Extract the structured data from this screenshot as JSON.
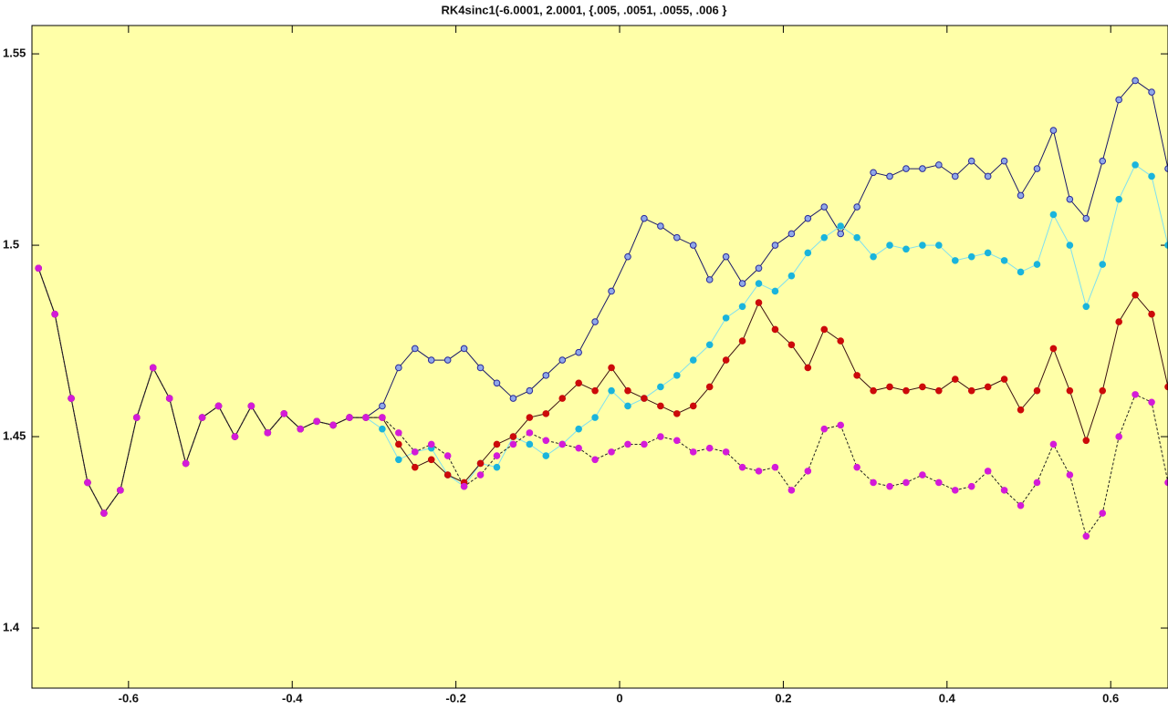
{
  "chart_data": {
    "type": "line",
    "title": "RK4sinc1(-6.0001, 2.0001, {.005, .0051, .0055, .006 }",
    "background": "#ffffa8",
    "x": [
      -0.71,
      -0.69,
      -0.67,
      -0.65,
      -0.63,
      -0.61,
      -0.59,
      -0.57,
      -0.55,
      -0.53,
      -0.51,
      -0.49,
      -0.47,
      -0.45,
      -0.43,
      -0.41,
      -0.39,
      -0.37,
      -0.35,
      -0.33,
      -0.31,
      -0.29,
      -0.27,
      -0.25,
      -0.23,
      -0.21,
      -0.19,
      -0.17,
      -0.15,
      -0.13,
      -0.11,
      -0.09,
      -0.07,
      -0.05,
      -0.03,
      -0.01,
      0.01,
      0.03,
      0.05,
      0.07,
      0.09,
      0.11,
      0.13,
      0.15,
      0.17,
      0.19,
      0.21,
      0.23,
      0.25,
      0.27,
      0.29,
      0.31,
      0.33,
      0.35,
      0.37,
      0.39,
      0.41,
      0.43,
      0.45,
      0.47,
      0.49,
      0.51,
      0.53,
      0.55,
      0.57,
      0.59,
      0.61,
      0.63,
      0.65,
      0.67
    ],
    "series": [
      {
        "color": "#2a2a9a",
        "marker_fill": "#8fa8e8",
        "line_color": "#1a1a6a",
        "dashed": false,
        "values": [
          1.494,
          1.482,
          1.46,
          1.438,
          1.43,
          1.436,
          1.455,
          1.468,
          1.46,
          1.443,
          1.455,
          1.458,
          1.45,
          1.458,
          1.451,
          1.456,
          1.452,
          1.454,
          1.453,
          1.455,
          1.455,
          1.458,
          1.468,
          1.473,
          1.47,
          1.47,
          1.473,
          1.468,
          1.464,
          1.46,
          1.462,
          1.466,
          1.47,
          1.472,
          1.48,
          1.488,
          1.497,
          1.507,
          1.505,
          1.502,
          1.5,
          1.491,
          1.497,
          1.49,
          1.494,
          1.5,
          1.503,
          1.507,
          1.51,
          1.503,
          1.51,
          1.519,
          1.518,
          1.52,
          1.52,
          1.521,
          1.518,
          1.522,
          1.518,
          1.522,
          1.513,
          1.52,
          1.53,
          1.512,
          1.507,
          1.522,
          1.538,
          1.543,
          1.54,
          1.52
        ]
      },
      {
        "color": "#1ab4dc",
        "marker_fill": "#1ab4dc",
        "line_color": "#7fe0f0",
        "dashed": false,
        "values": [
          1.494,
          1.482,
          1.46,
          1.438,
          1.43,
          1.436,
          1.455,
          1.468,
          1.46,
          1.443,
          1.455,
          1.458,
          1.45,
          1.458,
          1.451,
          1.456,
          1.452,
          1.454,
          1.453,
          1.455,
          1.455,
          1.452,
          1.444,
          1.446,
          1.447,
          1.44,
          1.437,
          1.443,
          1.442,
          1.45,
          1.448,
          1.445,
          1.448,
          1.452,
          1.455,
          1.462,
          1.458,
          1.46,
          1.463,
          1.466,
          1.47,
          1.474,
          1.481,
          1.484,
          1.49,
          1.488,
          1.492,
          1.498,
          1.502,
          1.505,
          1.502,
          1.497,
          1.5,
          1.499,
          1.5,
          1.5,
          1.496,
          1.497,
          1.498,
          1.496,
          1.493,
          1.495,
          1.508,
          1.5,
          1.484,
          1.495,
          1.512,
          1.521,
          1.518,
          1.5
        ]
      },
      {
        "color": "#cc0a0a",
        "marker_fill": "#cc0a0a",
        "line_color": "#3a1010",
        "dashed": false,
        "values": [
          1.494,
          1.482,
          1.46,
          1.438,
          1.43,
          1.436,
          1.455,
          1.468,
          1.46,
          1.443,
          1.455,
          1.458,
          1.45,
          1.458,
          1.451,
          1.456,
          1.452,
          1.454,
          1.453,
          1.455,
          1.455,
          1.455,
          1.448,
          1.442,
          1.444,
          1.44,
          1.438,
          1.443,
          1.448,
          1.45,
          1.455,
          1.456,
          1.46,
          1.464,
          1.462,
          1.468,
          1.462,
          1.46,
          1.458,
          1.456,
          1.458,
          1.463,
          1.47,
          1.475,
          1.485,
          1.478,
          1.474,
          1.468,
          1.478,
          1.475,
          1.466,
          1.462,
          1.463,
          1.462,
          1.463,
          1.462,
          1.465,
          1.462,
          1.463,
          1.465,
          1.457,
          1.462,
          1.473,
          1.462,
          1.449,
          1.462,
          1.48,
          1.487,
          1.482,
          1.463
        ]
      },
      {
        "color": "#d41ad8",
        "marker_fill": "#d41ad8",
        "line_color": "#222222",
        "dashed": true,
        "values": [
          1.494,
          1.482,
          1.46,
          1.438,
          1.43,
          1.436,
          1.455,
          1.468,
          1.46,
          1.443,
          1.455,
          1.458,
          1.45,
          1.458,
          1.451,
          1.456,
          1.452,
          1.454,
          1.453,
          1.455,
          1.455,
          1.455,
          1.451,
          1.446,
          1.448,
          1.445,
          1.437,
          1.44,
          1.445,
          1.448,
          1.451,
          1.449,
          1.448,
          1.447,
          1.444,
          1.446,
          1.448,
          1.448,
          1.45,
          1.449,
          1.446,
          1.447,
          1.446,
          1.442,
          1.441,
          1.442,
          1.436,
          1.441,
          1.452,
          1.453,
          1.442,
          1.438,
          1.437,
          1.438,
          1.44,
          1.438,
          1.436,
          1.437,
          1.441,
          1.436,
          1.432,
          1.438,
          1.448,
          1.44,
          1.424,
          1.43,
          1.45,
          1.461,
          1.459,
          1.438
        ]
      }
    ],
    "xlim": [
      -0.718,
      0.67
    ],
    "ylim": [
      1.3843,
      1.5574
    ],
    "xticks": [
      -0.6,
      -0.4,
      -0.2,
      0,
      0.2,
      0.4,
      0.6
    ],
    "yticks": [
      1.4,
      1.45,
      1.5,
      1.55
    ]
  }
}
